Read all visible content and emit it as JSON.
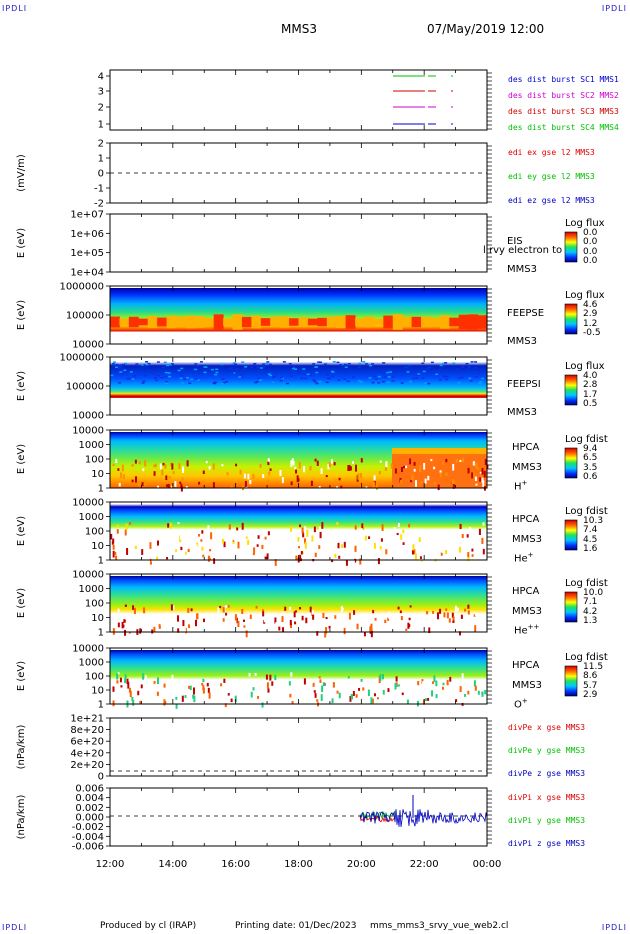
{
  "header": {
    "corner_left_top": "IPDLI",
    "corner_right_top": "IPDLI",
    "corner_left_bottom": "IPDLI",
    "corner_right_bottom": "IPDLI",
    "spacecraft": "MMS3",
    "datetime": "07/May/2019 12:00"
  },
  "footer": {
    "produced": "Produced by cl (IRAP)",
    "printing": "Printing date: 01/Dec/2023",
    "file": "mms_mms3_srvy_vue_web2.cl"
  },
  "chart_data": {
    "type": "spectrogram-stack",
    "x_axis": {
      "range": [
        "12:00",
        "00:00"
      ],
      "tick_labels": [
        "12:00",
        "14:00",
        "16:00",
        "18:00",
        "20:00",
        "22:00",
        "00:00"
      ]
    },
    "colors": {
      "mms1": "#00c000",
      "mms2": "#d00000",
      "mms3": "#d000d0",
      "mms4": "#0000d0",
      "x": "#e00000",
      "y": "#00c000",
      "z": "#0000c0"
    },
    "panels": [
      {
        "id": "des-burst",
        "ylabel": "",
        "yticks": [
          "4",
          "3",
          "2",
          "1"
        ],
        "legend": [
          {
            "text": "des dist burst SC1 MMS1",
            "color": "#0000d0"
          },
          {
            "text": "des dist burst SC2 MMS2",
            "color": "#d000d0"
          },
          {
            "text": "des dist burst SC3 MMS3",
            "color": "#d00000"
          },
          {
            "text": "des dist burst SC4 MMS4",
            "color": "#00c000"
          }
        ]
      },
      {
        "id": "edi",
        "ylabel": "(mV/m)",
        "yticks": [
          "2",
          "1",
          "0",
          "-1",
          "-2"
        ],
        "legend": [
          {
            "text": "edi ex gse l2 MMS3",
            "color": "#e00000"
          },
          {
            "text": "edi ey gse l2 MMS3",
            "color": "#00c000"
          },
          {
            "text": "edi ez gse l2 MMS3",
            "color": "#0000c0"
          }
        ]
      },
      {
        "id": "eis",
        "ylabel": "E (eV)",
        "yticks": [
          "1e+07",
          "1e+06",
          "1e+05",
          "1e+04"
        ],
        "instrument": [
          "EIS",
          "MMS3"
        ],
        "overlap_text": "l rvy electron to",
        "colorbar": {
          "title": "Log flux",
          "values": [
            "0.0",
            "0.0",
            "0.0",
            "0.0"
          ]
        }
      },
      {
        "id": "feepse",
        "ylabel": "E (eV)",
        "yticks": [
          "1000000",
          "100000",
          "10000"
        ],
        "instrument": [
          "FEEPSE",
          "MMS3"
        ],
        "colorbar": {
          "title": "Log flux",
          "values": [
            "4.6",
            "2.9",
            "1.2",
            "-0.5"
          ]
        }
      },
      {
        "id": "feepsi",
        "ylabel": "E (eV)",
        "yticks": [
          "1000000",
          "100000",
          "10000"
        ],
        "instrument": [
          "FEEPSI",
          "MMS3"
        ],
        "colorbar": {
          "title": "Log flux",
          "values": [
            "4.0",
            "2.8",
            "1.7",
            "0.5"
          ]
        }
      },
      {
        "id": "hpca-h",
        "ylabel": "E (eV)",
        "yticks": [
          "10000",
          "1000",
          "100",
          "10",
          "1"
        ],
        "instrument": [
          "HPCA",
          "MMS3"
        ],
        "species": "H",
        "species_sup": "+",
        "colorbar": {
          "title": "Log fdist",
          "values": [
            "9.4",
            "6.5",
            "3.5",
            "0.6"
          ]
        }
      },
      {
        "id": "hpca-he",
        "ylabel": "E (eV)",
        "yticks": [
          "10000",
          "1000",
          "100",
          "10",
          "1"
        ],
        "instrument": [
          "HPCA",
          "MMS3"
        ],
        "species": "He",
        "species_sup": "+",
        "colorbar": {
          "title": "Log fdist",
          "values": [
            "10.3",
            "7.4",
            "4.5",
            "1.6"
          ]
        }
      },
      {
        "id": "hpca-hepp",
        "ylabel": "E (eV)",
        "yticks": [
          "10000",
          "1000",
          "100",
          "10",
          "1"
        ],
        "instrument": [
          "HPCA",
          "MMS3"
        ],
        "species": "He",
        "species_sup": "++",
        "colorbar": {
          "title": "Log fdist",
          "values": [
            "10.0",
            "7.1",
            "4.2",
            "1.3"
          ]
        }
      },
      {
        "id": "hpca-o",
        "ylabel": "E (eV)",
        "yticks": [
          "10000",
          "1000",
          "100",
          "10",
          "1"
        ],
        "instrument": [
          "HPCA",
          "MMS3"
        ],
        "species": "O",
        "species_sup": "+",
        "colorbar": {
          "title": "Log fdist",
          "values": [
            "11.5",
            "8.6",
            "5.7",
            "2.9"
          ]
        }
      },
      {
        "id": "divpe",
        "ylabel": "(nPa/km)",
        "yticks": [
          "1e+21",
          "8e+20",
          "6e+20",
          "4e+20",
          "2e+20",
          "0"
        ],
        "legend": [
          {
            "text": "divPe x gse MMS3",
            "color": "#e00000"
          },
          {
            "text": "divPe y gse MMS3",
            "color": "#00c000"
          },
          {
            "text": "divPe z gse MMS3",
            "color": "#0000c0"
          }
        ]
      },
      {
        "id": "divpi",
        "ylabel": "(nPa/km)",
        "yticks": [
          "0.006",
          "0.004",
          "0.002",
          "0.000",
          "-0.002",
          "-0.004",
          "-0.006"
        ],
        "legend": [
          {
            "text": "divPi x gse MMS3",
            "color": "#e00000"
          },
          {
            "text": "divPi y gse MMS3",
            "color": "#00c000"
          },
          {
            "text": "divPi z gse MMS3",
            "color": "#0000c0"
          }
        ]
      }
    ]
  }
}
